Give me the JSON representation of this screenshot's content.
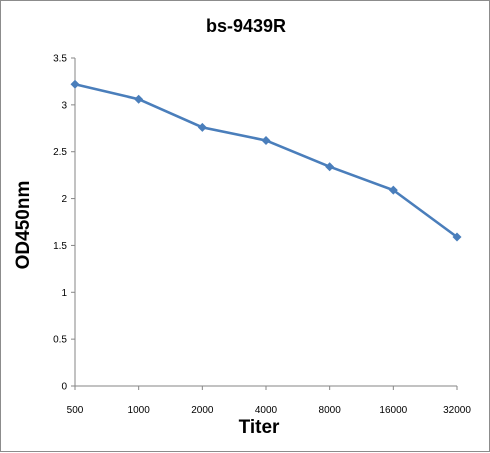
{
  "chart_data": {
    "type": "line",
    "title": "bs-9439R",
    "xlabel": "Titer",
    "ylabel": "OD450nm",
    "categories": [
      "500",
      "1000",
      "2000",
      "4000",
      "8000",
      "16000",
      "32000"
    ],
    "series": [
      {
        "values": [
          3.22,
          3.06,
          2.76,
          2.62,
          2.34,
          2.09,
          1.59
        ],
        "color": "#4a7ebb",
        "marker": "diamond"
      }
    ],
    "ylim": [
      0,
      3.5
    ],
    "yticks": [
      "0",
      "0.5",
      "1",
      "1.5",
      "2",
      "2.5",
      "3",
      "3.5"
    ],
    "grid": false,
    "legend": false
  }
}
